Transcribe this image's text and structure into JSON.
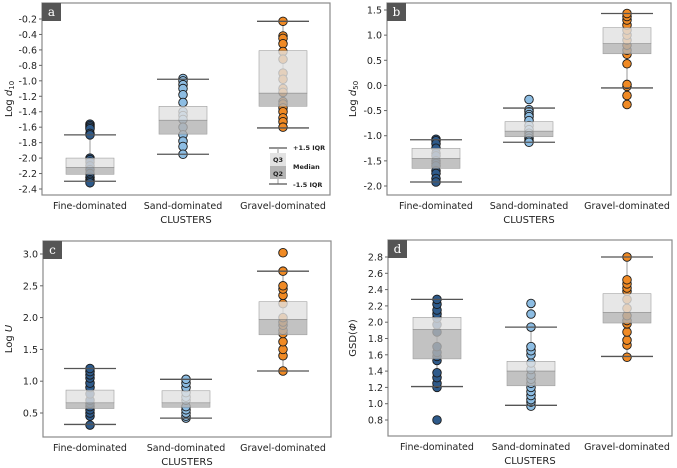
{
  "colors": {
    "Fine-dominated": "#2e5a8a",
    "Sand-dominated": "#8dbde3",
    "Gravel-dominated": "#f08a24",
    "q3_box": "#e2e2e2",
    "q2_box": "#b4b4b4",
    "panel_tag": "#555555"
  },
  "legend": {
    "upper": "+1.5 IQR",
    "q3": "Q3",
    "median": "Median",
    "q2": "Q2",
    "lower": "-1.5 IQR"
  },
  "chart_data": [
    {
      "type": "box",
      "tag": "a",
      "xlabel": "CLUSTERS",
      "ylabel": {
        "prefix": "Log ",
        "var": "d",
        "sub": "10"
      },
      "ticks": [
        "-0.2",
        "-0.4",
        "-0.6",
        "-0.8",
        "-1.0",
        "-1.2",
        "-1.4",
        "-1.6",
        "-1.8",
        "-2.0",
        "-2.2",
        "-2.4"
      ],
      "categories": [
        "Fine-dominated",
        "Sand-dominated",
        "Gravel-dominated"
      ],
      "boxes": [
        {
          "whisker_low": -2.3,
          "q1": -2.21,
          "median": -2.12,
          "q3": -2.0,
          "whisker_high": -1.7,
          "points": [
            -1.56,
            -1.58,
            -1.6,
            -1.62,
            -1.68,
            -1.7,
            -2.0,
            -2.02,
            -2.05,
            -2.1,
            -2.15,
            -2.2,
            -2.25,
            -2.28,
            -2.3,
            -2.32
          ]
        },
        {
          "whisker_low": -1.95,
          "q1": -1.69,
          "median": -1.51,
          "q3": -1.33,
          "whisker_high": -0.98,
          "points": [
            -0.97,
            -1.0,
            -1.05,
            -1.1,
            -1.18,
            -1.28,
            -1.4,
            -1.45,
            -1.5,
            -1.6,
            -1.7,
            -1.78,
            -1.85,
            -1.95
          ]
        },
        {
          "whisker_low": -1.61,
          "q1": -1.33,
          "median": -1.16,
          "q3": -0.61,
          "whisker_high": -0.23,
          "points": [
            -0.23,
            -0.42,
            -0.45,
            -0.52,
            -0.62,
            -0.72,
            -0.9,
            -0.98,
            -1.1,
            -1.15,
            -1.27,
            -1.3,
            -1.35,
            -1.4,
            -1.48,
            -1.53,
            -1.6
          ]
        }
      ]
    },
    {
      "type": "box",
      "tag": "b",
      "xlabel": "CLUSTERS",
      "ylabel": {
        "prefix": "Log ",
        "var": "d",
        "sub": "50"
      },
      "ticks": [
        "1.5",
        "1.0",
        "0.5",
        "0.0",
        "-0.5",
        "-1.0",
        "-1.5",
        "-2.0"
      ],
      "categories": [
        "Fine-dominated",
        "Sand-dominated",
        "Gravel-dominated"
      ],
      "boxes": [
        {
          "whisker_low": -1.92,
          "q1": -1.65,
          "median": -1.45,
          "q3": -1.25,
          "whisker_high": -1.08,
          "points": [
            -1.07,
            -1.1,
            -1.16,
            -1.25,
            -1.35,
            -1.4,
            -1.5,
            -1.55,
            -1.6,
            -1.7,
            -1.75,
            -1.85,
            -1.92
          ]
        },
        {
          "whisker_low": -1.13,
          "q1": -1.02,
          "median": -0.91,
          "q3": -0.72,
          "whisker_high": -0.45,
          "points": [
            -0.28,
            -0.48,
            -0.52,
            -0.58,
            -0.62,
            -0.7,
            -0.8,
            -0.88,
            -0.95,
            -1.0,
            -1.05,
            -1.1,
            -1.13
          ]
        },
        {
          "whisker_low": -0.05,
          "q1": 0.63,
          "median": 0.83,
          "q3": 1.15,
          "whisker_high": 1.43,
          "points": [
            -0.38,
            -0.2,
            -0.02,
            0.02,
            0.43,
            0.62,
            0.7,
            0.8,
            0.9,
            1.0,
            1.1,
            1.2,
            1.3,
            1.37,
            1.43
          ]
        }
      ]
    },
    {
      "type": "box",
      "tag": "c",
      "xlabel": "CLUSTERS",
      "ylabel": {
        "prefix": "Log ",
        "var": "U",
        "sub": ""
      },
      "ticks": [
        "3.0",
        "2.5",
        "2.0",
        "1.5",
        "1.0",
        "0.5"
      ],
      "categories": [
        "Fine-dominated",
        "Sand-dominated",
        "Gravel-dominated"
      ],
      "boxes": [
        {
          "whisker_low": 0.32,
          "q1": 0.57,
          "median": 0.66,
          "q3": 0.86,
          "whisker_high": 1.2,
          "points": [
            0.31,
            0.45,
            0.5,
            0.55,
            0.6,
            0.65,
            0.7,
            0.8,
            0.9,
            0.97,
            1.05,
            1.1,
            1.15,
            1.2
          ]
        },
        {
          "whisker_low": 0.42,
          "q1": 0.59,
          "median": 0.66,
          "q3": 0.85,
          "whisker_high": 1.03,
          "points": [
            0.42,
            0.45,
            0.5,
            0.55,
            0.6,
            0.7,
            0.75,
            0.82,
            0.9,
            0.97,
            1.03
          ]
        },
        {
          "whisker_low": 1.16,
          "q1": 1.73,
          "median": 1.97,
          "q3": 2.25,
          "whisker_high": 2.73,
          "points": [
            1.16,
            1.4,
            1.5,
            1.62,
            1.75,
            1.8,
            1.88,
            1.93,
            2.0,
            2.22,
            2.35,
            2.45,
            2.5,
            2.73,
            3.02
          ]
        }
      ]
    },
    {
      "type": "box",
      "tag": "d",
      "xlabel": "CLUSTERS",
      "ylabel": {
        "prefix": "GSD(",
        "var": "Φ",
        "sub": "",
        "suffix": ")"
      },
      "ticks": [
        "2.8",
        "2.6",
        "2.4",
        "2.2",
        "2.0",
        "1.8",
        "1.6",
        "1.4",
        "1.2",
        "1.0",
        "0.8"
      ],
      "categories": [
        "Fine-dominated",
        "Sand-dominated",
        "Gravel-dominated"
      ],
      "boxes": [
        {
          "whisker_low": 1.21,
          "q1": 1.55,
          "median": 1.91,
          "q3": 2.06,
          "whisker_high": 2.28,
          "points": [
            0.8,
            1.2,
            1.25,
            1.32,
            1.38,
            1.53,
            1.58,
            1.63,
            1.7,
            1.88,
            1.97,
            2.05,
            2.1,
            2.15,
            2.22,
            2.28
          ]
        },
        {
          "whisker_low": 0.98,
          "q1": 1.22,
          "median": 1.4,
          "q3": 1.52,
          "whisker_high": 1.94,
          "points": [
            0.97,
            1.02,
            1.05,
            1.1,
            1.15,
            1.2,
            1.25,
            1.3,
            1.35,
            1.42,
            1.5,
            1.6,
            1.65,
            1.7,
            1.94,
            2.1,
            2.23
          ]
        },
        {
          "whisker_low": 1.58,
          "q1": 1.99,
          "median": 2.12,
          "q3": 2.35,
          "whisker_high": 2.8,
          "points": [
            1.57,
            1.72,
            1.78,
            1.88,
            1.98,
            2.02,
            2.08,
            2.17,
            2.28,
            2.38,
            2.42,
            2.47,
            2.52,
            2.8
          ]
        }
      ]
    }
  ]
}
